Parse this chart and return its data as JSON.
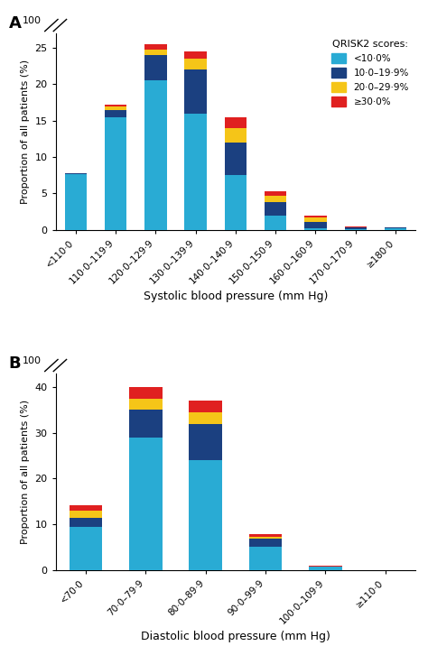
{
  "panel_A": {
    "categories": [
      "<110·0",
      "110·0–119·9",
      "120·0–129·9",
      "130·0–139·9",
      "140·0–140·9",
      "150·0–150·9",
      "160·0–160·9",
      "170·0–170·9",
      "≥180·0"
    ],
    "light_blue": [
      7.6,
      15.5,
      20.5,
      16.0,
      7.5,
      2.0,
      0.2,
      0.1,
      0.2
    ],
    "dark_blue": [
      0.2,
      1.0,
      3.5,
      6.0,
      4.5,
      1.8,
      0.9,
      0.2,
      0.1
    ],
    "yellow": [
      0.0,
      0.4,
      0.7,
      1.5,
      2.0,
      0.9,
      0.6,
      0.1,
      0.05
    ],
    "red": [
      0.0,
      0.3,
      0.8,
      1.0,
      1.5,
      0.6,
      0.3,
      0.1,
      0.05
    ],
    "xlabel": "Systolic blood pressure (mm Hg)",
    "ylabel": "Proportion of all patients (%)",
    "label": "A",
    "ylim": [
      0,
      27
    ],
    "yticks": [
      0,
      5,
      10,
      15,
      20,
      25
    ],
    "ytick_labels": [
      "0",
      "5",
      "10",
      "15",
      "20",
      "25"
    ]
  },
  "panel_B": {
    "categories": [
      "<70·0",
      "70·0–79·9",
      "80·0–89·9",
      "90·0–99·9",
      "100·0–109·9",
      "≥110·0"
    ],
    "light_blue": [
      9.5,
      29.0,
      24.0,
      5.0,
      0.7,
      0.0
    ],
    "dark_blue": [
      2.0,
      6.0,
      8.0,
      1.8,
      0.1,
      0.0
    ],
    "yellow": [
      1.5,
      2.5,
      2.5,
      0.5,
      0.05,
      0.0
    ],
    "red": [
      1.2,
      2.5,
      2.5,
      0.5,
      0.05,
      0.0
    ],
    "xlabel": "Diastolic blood pressure (mm Hg)",
    "ylabel": "Proportion of all patients (%)",
    "label": "B",
    "ylim": [
      0,
      43
    ],
    "yticks": [
      0,
      10,
      20,
      30,
      40
    ],
    "ytick_labels": [
      "0",
      "10",
      "20",
      "30",
      "40"
    ]
  },
  "colors": {
    "light_blue": "#29ABD4",
    "dark_blue": "#1B4080",
    "yellow": "#F5C518",
    "red": "#E02020"
  },
  "legend_labels": [
    "<10·0%",
    "10·0–19·9%",
    "20·0–29·9%",
    "≥30·0%"
  ],
  "legend_title": "QRISK2 scores:"
}
